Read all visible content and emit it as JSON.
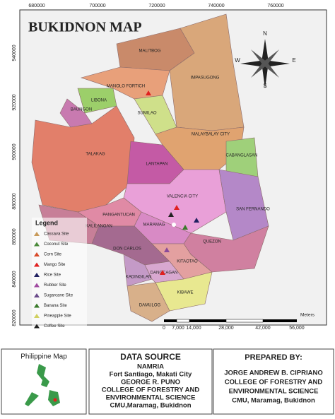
{
  "map": {
    "title": "BUKIDNON MAP",
    "x_labels": [
      "680000",
      "700000",
      "720000",
      "740000",
      "760000"
    ],
    "y_labels": [
      "940000",
      "920000",
      "900000",
      "880000",
      "860000",
      "840000",
      "820000"
    ],
    "regions": [
      "MALITBOG",
      "IMPASUGONG",
      "MANOLO FORTICH",
      "LIBONA",
      "SUMILAO",
      "BAUNGON",
      "TALAKAG",
      "MALAYBALAY CITY",
      "CABANGLASAN",
      "LANTAPAN",
      "VALENCIA CITY",
      "SAN FERNANDO",
      "PANGANTUCAN",
      "KALILANGAN",
      "MARAMAG",
      "QUEZON",
      "DON CARLOS",
      "KITAOTAO",
      "KADINGILAN",
      "DANGCAGAN",
      "KIBAWE",
      "DAMULOG"
    ],
    "compass": {
      "n": "N",
      "s": "S",
      "e": "E",
      "w": "W"
    },
    "scale": {
      "labels": [
        "0",
        "7,000",
        "14,000",
        "28,000",
        "42,000",
        "56,000"
      ],
      "unit": "Meters"
    }
  },
  "legend": {
    "title": "Legend",
    "items": [
      "Cassava Site",
      "Coconut Site",
      "Corn Site",
      "Mango Site",
      "Rice Site",
      "Rubber Site",
      "Sugarcane Site",
      "Banana Site",
      "Pineapple Site",
      "Coffee Site"
    ]
  },
  "footer": {
    "inset_title": "Philippine Map",
    "source": {
      "title": "DATA SOURCE",
      "lines": [
        "NAMRIA",
        "Fort Santiago, Makati City",
        "GEORGE R. PUNO",
        "COLLEGE OF FORESTRY AND",
        "ENVIRONMENTAL SCIENCE",
        "CMU,Maramag, Bukidnon"
      ]
    },
    "prepared": {
      "title": "PREPARED BY:",
      "lines": [
        "JORGE ANDREW B. CIPRIANO",
        "COLLEGE OF FORESTRY AND",
        "ENVIRONMENTAL SCIENCE",
        "CMU, Maramag, Bukidnon"
      ]
    }
  }
}
